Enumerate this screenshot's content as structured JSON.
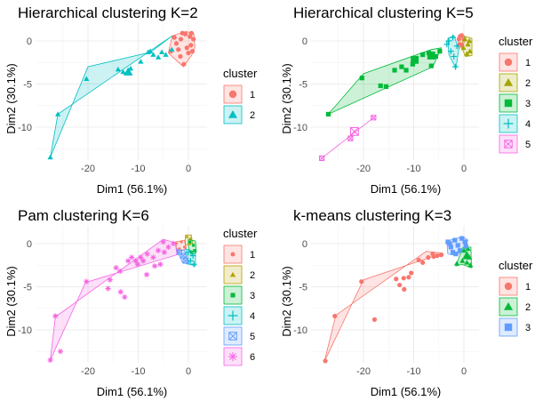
{
  "chart_data": [
    {
      "type": "scatter",
      "title": "Hierarchical clustering K=2",
      "xlabel": "Dim1 (56.1%)",
      "ylabel": "Dim2 (30.1%)",
      "xticks": [
        -20,
        -10,
        0
      ],
      "yticks": [
        0,
        -5,
        -10
      ],
      "legend_title": "cluster",
      "grid": true,
      "clusters": [
        {
          "label": "1",
          "color": "#F8766D",
          "marker": "circle",
          "hull": [
            [
              -3.2,
              0.6
            ],
            [
              -0.5,
              1.1
            ],
            [
              1.1,
              0.8
            ],
            [
              1.3,
              -0.8
            ],
            [
              0.7,
              -1.6
            ],
            [
              -1.0,
              -3.0
            ],
            [
              -4.0,
              -1.4
            ]
          ],
          "points": [
            [
              -2.8,
              0.4
            ],
            [
              -1.5,
              0.2
            ],
            [
              -0.6,
              0.8
            ],
            [
              0.3,
              0.5
            ],
            [
              1.0,
              0.2
            ],
            [
              0.5,
              -0.5
            ],
            [
              -0.3,
              -0.8
            ],
            [
              0.8,
              -1.2
            ],
            [
              -0.9,
              -2.7
            ],
            [
              -2.0,
              -1.0
            ],
            [
              -3.5,
              -1.2
            ],
            [
              -1.2,
              0.9
            ],
            [
              0.0,
              -1.4
            ],
            [
              -2.4,
              -0.3
            ],
            [
              0.6,
              0.9
            ],
            [
              -1.6,
              -1.8
            ]
          ]
        },
        {
          "label": "2",
          "color": "#00BFC4",
          "marker": "triangle",
          "hull": [
            [
              -3.2,
              0.6
            ],
            [
              -7.5,
              -1.3
            ],
            [
              -20.0,
              -3.0
            ],
            [
              -27.5,
              -13.5
            ],
            [
              -26.0,
              -8.5
            ]
          ],
          "points": [
            [
              -3.3,
              -1.0
            ],
            [
              -4.5,
              -1.6
            ],
            [
              -5.3,
              -1.3
            ],
            [
              -6.0,
              -1.9
            ],
            [
              -7.0,
              -1.6
            ],
            [
              -8.0,
              -1.3
            ],
            [
              -9.5,
              -2.4
            ],
            [
              -11.5,
              -3.2
            ],
            [
              -13.0,
              -3.6
            ],
            [
              -14.0,
              -3.3
            ],
            [
              -20.3,
              -4.4
            ],
            [
              -26.0,
              -8.5
            ],
            [
              -27.5,
              -13.5
            ],
            [
              -7.6,
              -1.2
            ]
          ],
          "large_points": [
            [
              -12.0,
              -3.6
            ]
          ]
        }
      ]
    },
    {
      "type": "scatter",
      "title": "Hierarchical clustering K=5",
      "xlabel": "Dim1 (56.1%)",
      "ylabel": "Dim2 (30.1%)",
      "xticks": [
        -20,
        -10,
        0
      ],
      "yticks": [
        0,
        -5,
        -10
      ],
      "legend_title": "cluster",
      "grid": true,
      "clusters": [
        {
          "label": "1",
          "color": "#F8766D",
          "marker": "circle",
          "hull": [
            [
              -1.2,
              0.6
            ],
            [
              -0.3,
              0.9
            ],
            [
              0.3,
              0.3
            ],
            [
              -0.2,
              -0.6
            ],
            [
              -1.0,
              -0.9
            ]
          ],
          "points": [
            [
              -1.0,
              0.2
            ],
            [
              -0.6,
              0.6
            ],
            [
              0.0,
              0.2
            ],
            [
              -0.4,
              -0.5
            ],
            [
              -0.8,
              -0.4
            ]
          ]
        },
        {
          "label": "2",
          "color": "#A3A500",
          "marker": "triangle",
          "hull": [
            [
              -0.2,
              0.6
            ],
            [
              1.6,
              0.3
            ],
            [
              1.6,
              -1.7
            ],
            [
              0.3,
              -1.8
            ],
            [
              -0.4,
              -0.8
            ]
          ],
          "points": [
            [
              0.2,
              0.2
            ],
            [
              0.8,
              -0.4
            ],
            [
              1.2,
              -1.2
            ],
            [
              0.6,
              -1.5
            ],
            [
              -0.1,
              -0.8
            ],
            [
              1.1,
              0.0
            ]
          ]
        },
        {
          "label": "3",
          "color": "#00BA38",
          "marker": "square",
          "hull": [
            [
              -4.5,
              -0.8
            ],
            [
              -6.5,
              -1.0
            ],
            [
              -20.0,
              -3.8
            ],
            [
              -27.0,
              -8.5
            ],
            [
              -6.2,
              -3.0
            ]
          ],
          "points": [
            [
              -4.8,
              -1.2
            ],
            [
              -5.6,
              -1.8
            ],
            [
              -7.0,
              -1.4
            ],
            [
              -8.2,
              -1.6
            ],
            [
              -10.2,
              -2.7
            ],
            [
              -11.5,
              -3.4
            ],
            [
              -12.4,
              -3.0
            ],
            [
              -13.8,
              -3.4
            ],
            [
              -15.5,
              -5.3
            ],
            [
              -16.6,
              -5.2
            ],
            [
              -20.3,
              -4.3
            ],
            [
              -27.0,
              -8.5
            ],
            [
              -6.5,
              -2.9
            ]
          ],
          "large_points": [
            [
              -9.8,
              -2.2
            ],
            [
              -6.5,
              -1.7
            ]
          ]
        },
        {
          "label": "4",
          "color": "#00BFC4",
          "marker": "plus",
          "hull": [
            [
              -3.2,
              0.3
            ],
            [
              -2.0,
              0.6
            ],
            [
              -1.0,
              -0.9
            ],
            [
              -1.6,
              -3.2
            ],
            [
              -3.0,
              -1.6
            ]
          ],
          "points": [
            [
              -3.0,
              0.0
            ],
            [
              -2.2,
              0.4
            ],
            [
              -1.4,
              -0.6
            ],
            [
              -1.7,
              -3.0
            ],
            [
              -2.6,
              -1.2
            ],
            [
              -2.0,
              -1.8
            ],
            [
              -3.4,
              -0.4
            ]
          ]
        },
        {
          "label": "5",
          "color": "#F564E3",
          "marker": "boxed-cross",
          "hull": [
            [
              -18.0,
              -8.9
            ],
            [
              -28.3,
              -13.6
            ]
          ],
          "points": [
            [
              -18.0,
              -8.9
            ],
            [
              -22.6,
              -11.3
            ],
            [
              -28.3,
              -13.6
            ]
          ],
          "large_points": [
            [
              -21.8,
              -10.5
            ]
          ]
        }
      ]
    },
    {
      "type": "scatter",
      "title": "Pam clustering K=6",
      "xlabel": "Dim1 (56.1%)",
      "ylabel": "Dim2 (30.1%)",
      "xticks": [
        -20,
        -10,
        0
      ],
      "yticks": [
        0,
        -5,
        -10
      ],
      "legend_title": "cluster",
      "grid": true,
      "clusters": [
        {
          "label": "1",
          "color": "#F8766D",
          "marker": "circle-small",
          "hull": [
            [
              -2.6,
              0.2
            ],
            [
              -0.8,
              0.4
            ],
            [
              -0.4,
              -0.6
            ],
            [
              -2.2,
              -1.0
            ]
          ],
          "points": [
            [
              -2.4,
              0.0
            ],
            [
              -1.4,
              0.2
            ],
            [
              -0.8,
              -0.4
            ],
            [
              -1.8,
              -0.6
            ]
          ]
        },
        {
          "label": "2",
          "color": "#B79F00",
          "marker": "triangle-small",
          "hull": [
            [
              -0.6,
              1.0
            ],
            [
              0.6,
              1.0
            ],
            [
              0.8,
              0.0
            ],
            [
              -0.6,
              -0.2
            ]
          ],
          "points": [
            [
              -0.3,
              0.8
            ],
            [
              0.4,
              0.6
            ],
            [
              0.2,
              0.0
            ]
          ]
        },
        {
          "label": "3",
          "color": "#00BA38",
          "marker": "square-small",
          "hull": [
            [
              0.0,
              0.5
            ],
            [
              1.4,
              0.3
            ],
            [
              1.6,
              -1.0
            ],
            [
              0.6,
              -1.4
            ],
            [
              0.0,
              -0.4
            ]
          ],
          "points": [
            [
              0.3,
              0.2
            ],
            [
              1.0,
              -0.2
            ],
            [
              1.2,
              -0.8
            ],
            [
              0.6,
              -1.0
            ]
          ]
        },
        {
          "label": "4",
          "color": "#00BFC4",
          "marker": "plus",
          "hull": [
            [
              -0.6,
              -0.6
            ],
            [
              1.4,
              -1.0
            ],
            [
              1.4,
              -2.6
            ],
            [
              0.2,
              -2.4
            ]
          ],
          "points": [
            [
              0.0,
              -1.0
            ],
            [
              0.9,
              -1.4
            ],
            [
              1.1,
              -2.4
            ],
            [
              0.4,
              -2.0
            ]
          ]
        },
        {
          "label": "5",
          "color": "#619CFF",
          "marker": "boxed-cross",
          "hull": [
            [
              -2.4,
              -0.6
            ],
            [
              -0.8,
              -0.8
            ],
            [
              0.0,
              -2.4
            ],
            [
              -1.2,
              -2.2
            ]
          ],
          "points": [
            [
              -1.8,
              -1.0
            ],
            [
              -1.0,
              -1.4
            ],
            [
              -0.6,
              -2.0
            ]
          ]
        },
        {
          "label": "6",
          "color": "#F564E3",
          "marker": "asterisk",
          "hull": [
            [
              -5.0,
              0.5
            ],
            [
              -2.6,
              0.1
            ],
            [
              -2.3,
              -1.3
            ],
            [
              -20.5,
              -4.5
            ],
            [
              -27.5,
              -13.5
            ],
            [
              -26.5,
              -8.5
            ]
          ],
          "points": [
            [
              -3.0,
              0.0
            ],
            [
              -4.0,
              -0.4
            ],
            [
              -5.0,
              0.2
            ],
            [
              -4.8,
              -1.0
            ],
            [
              -6.0,
              -0.8
            ],
            [
              -7.0,
              -1.6
            ],
            [
              -8.2,
              -1.2
            ],
            [
              -9.0,
              -2.0
            ],
            [
              -9.5,
              -1.6
            ],
            [
              -10.5,
              -2.0
            ],
            [
              -11.3,
              -1.6
            ],
            [
              -12.0,
              -2.0
            ],
            [
              -13.6,
              -3.2
            ],
            [
              -14.4,
              -2.8
            ],
            [
              -15.6,
              -4.2
            ],
            [
              -16.0,
              -5.2
            ],
            [
              -13.5,
              -5.6
            ],
            [
              -12.7,
              -6.2
            ],
            [
              -8.3,
              -3.6
            ],
            [
              -5.6,
              -2.4
            ],
            [
              -6.7,
              -2.6
            ],
            [
              -10.1,
              -2.4
            ],
            [
              -20.3,
              -4.4
            ],
            [
              -26.5,
              -8.4
            ],
            [
              -25.5,
              -12.5
            ],
            [
              -27.5,
              -13.5
            ]
          ]
        }
      ]
    },
    {
      "type": "scatter",
      "title": "k-means clustering K=3",
      "xlabel": "Dim1 (56.1%)",
      "ylabel": "Dim2 (30.1%)",
      "xticks": [
        -20,
        -10,
        0
      ],
      "yticks": [
        0,
        -5,
        -10
      ],
      "legend_title": "cluster",
      "grid": true,
      "clusters": [
        {
          "label": "1",
          "color": "#F8766D",
          "marker": "circle",
          "hull": [
            [
              -7.5,
              -0.9
            ],
            [
              -4.2,
              -1.1
            ],
            [
              -20.0,
              -4.2
            ],
            [
              -27.8,
              -13.7
            ],
            [
              -25.5,
              -8.3
            ]
          ],
          "points": [
            [
              -4.5,
              -1.3
            ],
            [
              -5.3,
              -1.4
            ],
            [
              -6.0,
              -1.5
            ],
            [
              -7.1,
              -1.6
            ],
            [
              -8.2,
              -2.2
            ],
            [
              -9.0,
              -1.9
            ],
            [
              -10.5,
              -3.4
            ],
            [
              -11.0,
              -3.9
            ],
            [
              -12.0,
              -4.0
            ],
            [
              -11.9,
              -5.3
            ],
            [
              -13.5,
              -4.1
            ],
            [
              -12.8,
              -4.8
            ],
            [
              -20.4,
              -4.4
            ],
            [
              -17.8,
              -8.8
            ],
            [
              -25.7,
              -8.4
            ],
            [
              -27.6,
              -13.6
            ],
            [
              -6.2,
              -1.2
            ]
          ],
          "large_points": []
        },
        {
          "label": "2",
          "color": "#00BA38",
          "marker": "triangle",
          "hull": [
            [
              -0.2,
              -0.4
            ],
            [
              1.4,
              -0.4
            ],
            [
              1.5,
              -2.8
            ],
            [
              -0.4,
              -2.4
            ],
            [
              -1.6,
              -2.6
            ]
          ],
          "points": [
            [
              0.0,
              -0.8
            ],
            [
              0.8,
              -0.6
            ],
            [
              1.1,
              -1.6
            ],
            [
              1.3,
              -2.5
            ],
            [
              0.6,
              -2.2
            ],
            [
              -0.3,
              -2.0
            ],
            [
              -1.4,
              -2.3
            ]
          ],
          "large_points": [
            [
              0.6,
              -1.4
            ]
          ]
        },
        {
          "label": "3",
          "color": "#619CFF",
          "marker": "square",
          "hull": [
            [
              -3.4,
              0.3
            ],
            [
              -0.2,
              0.8
            ],
            [
              0.8,
              0.4
            ],
            [
              0.3,
              -0.6
            ],
            [
              -1.6,
              -1.4
            ],
            [
              -3.2,
              -1.2
            ]
          ],
          "points": [
            [
              -3.2,
              0.2
            ],
            [
              -2.6,
              -0.4
            ],
            [
              -1.8,
              0.4
            ],
            [
              -1.2,
              -0.2
            ],
            [
              -0.4,
              0.6
            ],
            [
              0.2,
              0.2
            ],
            [
              -0.8,
              -0.8
            ],
            [
              -2.2,
              -1.0
            ],
            [
              0.4,
              -0.3
            ],
            [
              -1.6,
              -1.2
            ],
            [
              -2.8,
              0.0
            ]
          ],
          "large_points": []
        }
      ]
    }
  ]
}
